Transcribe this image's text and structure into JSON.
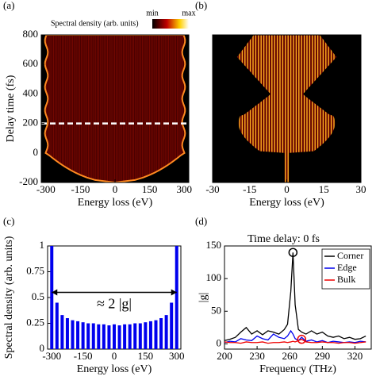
{
  "chart_data": [
    {
      "type": "heatmap",
      "label": "(a)",
      "colorbar_label": "Spectral density (arb. units)",
      "colorbar_ticks": [
        "min",
        "max"
      ],
      "x_label": "Energy loss (eV)",
      "y_label": "Delay time (fs)",
      "xlim": [
        -320,
        320
      ],
      "ylim": [
        -200,
        800
      ],
      "xticks": [
        -300,
        -150,
        0,
        150,
        300
      ],
      "yticks": [
        -200,
        0,
        200,
        400,
        600,
        800
      ],
      "marker_y": 200
    },
    {
      "type": "heatmap",
      "label": "(b)",
      "x_label": "Energy loss (eV)",
      "xlim": [
        -30,
        30
      ],
      "ylim": [
        -200,
        800
      ],
      "xticks": [
        -30,
        -15,
        0,
        15,
        30
      ]
    },
    {
      "type": "stem",
      "label": "(c)",
      "x_label": "Energy loss (eV)",
      "y_label": "Spectral density (arb. units)",
      "xlim": [
        -320,
        320
      ],
      "ylim": [
        0,
        1
      ],
      "xticks": [
        -300,
        -150,
        0,
        150,
        300
      ],
      "yticks": [
        0,
        0.25,
        0.5,
        0.75,
        1
      ],
      "color": "#0000ee",
      "x": [
        -300,
        -275,
        -250,
        -225,
        -200,
        -175,
        -150,
        -125,
        -100,
        -75,
        -50,
        -25,
        0,
        25,
        50,
        75,
        100,
        125,
        150,
        175,
        200,
        225,
        250,
        275,
        300
      ],
      "values": [
        1.0,
        0.45,
        0.33,
        0.3,
        0.28,
        0.27,
        0.26,
        0.25,
        0.25,
        0.24,
        0.24,
        0.23,
        0.24,
        0.23,
        0.24,
        0.24,
        0.25,
        0.25,
        0.26,
        0.27,
        0.28,
        0.3,
        0.33,
        0.45,
        1.0
      ],
      "annotation": {
        "text": "≈ 2 |g|",
        "x": [
          -300,
          300
        ],
        "y": 0.55
      }
    },
    {
      "type": "line",
      "label": "(d)",
      "title": "Time delay: 0 fs",
      "x_label": "Frequency (THz)",
      "y_label": "|g|",
      "xlim": [
        200,
        335
      ],
      "ylim": [
        -8,
        150
      ],
      "xticks": [
        200,
        230,
        260,
        290,
        320
      ],
      "yticks": [
        0,
        50,
        100,
        150
      ],
      "legend": "upper right",
      "x": [
        200,
        205,
        210,
        215,
        220,
        225,
        230,
        235,
        240,
        245,
        250,
        255,
        258,
        261,
        263,
        265,
        268,
        271,
        275,
        280,
        285,
        290,
        295,
        300,
        305,
        310,
        315,
        320,
        325,
        330
      ],
      "series": [
        {
          "name": "Corner",
          "color": "#000000",
          "values": [
            5,
            7,
            10,
            18,
            25,
            15,
            20,
            14,
            20,
            18,
            15,
            22,
            30,
            80,
            140,
            60,
            22,
            18,
            15,
            20,
            15,
            18,
            12,
            10,
            12,
            8,
            10,
            7,
            8,
            12
          ]
        },
        {
          "name": "Edge",
          "color": "#0000ee",
          "values": [
            2,
            4,
            3,
            8,
            6,
            5,
            12,
            8,
            6,
            15,
            10,
            8,
            12,
            20,
            15,
            8,
            5,
            10,
            4,
            6,
            3,
            5,
            2,
            4,
            3,
            2,
            3,
            2,
            4,
            3
          ]
        },
        {
          "name": "Bulk",
          "color": "#ee0000",
          "values": [
            3,
            2,
            2,
            1,
            3,
            2,
            2,
            3,
            1,
            2,
            2,
            3,
            2,
            3,
            4,
            3,
            5,
            7,
            3,
            2,
            2,
            3,
            2,
            2,
            1,
            2,
            2,
            1,
            2,
            3
          ]
        }
      ],
      "highlights": [
        {
          "x": 263,
          "y": 140,
          "color": "#000000"
        },
        {
          "x": 271,
          "y": 7,
          "color": "#ee0000"
        }
      ]
    }
  ]
}
